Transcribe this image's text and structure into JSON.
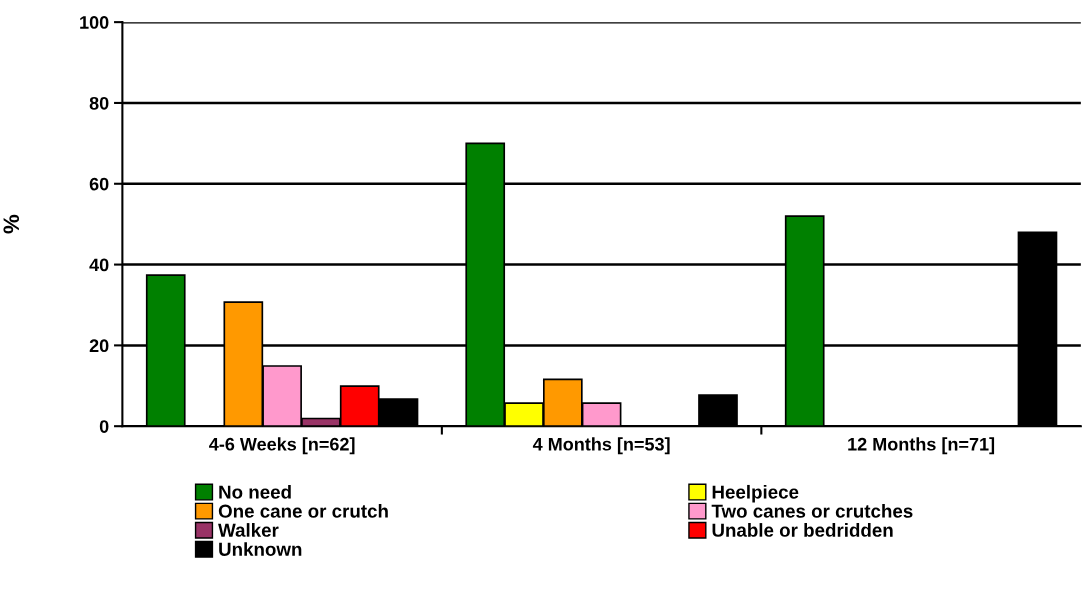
{
  "chart_data": {
    "type": "bar",
    "ylabel": "%",
    "categories": [
      "4-6 Weeks [n=62]",
      "4 Months [n=53]",
      "12 Months [n=71]"
    ],
    "series": [
      {
        "name": "No need",
        "color": "#008000",
        "values": [
          37.4,
          70,
          52
        ]
      },
      {
        "name": "Heelpiece",
        "color": "#ffff00",
        "values": [
          null,
          5.7,
          null
        ]
      },
      {
        "name": "One cane or crutch",
        "color": "#ff9900",
        "values": [
          30.7,
          11.6,
          null
        ]
      },
      {
        "name": "Two canes or crutches",
        "color": "#ff99cc",
        "values": [
          14.9,
          5.7,
          null
        ]
      },
      {
        "name": "Walker",
        "color": "#993366",
        "values": [
          1.9,
          null,
          null
        ]
      },
      {
        "name": "Unable or bedridden",
        "color": "#ff0000",
        "values": [
          9.9,
          null,
          null
        ]
      },
      {
        "name": "Unknown",
        "color": "#000000",
        "values": [
          6.7,
          7.7,
          48
        ]
      }
    ],
    "ylim": [
      0,
      100
    ],
    "yticks": [
      0,
      20,
      40,
      60,
      80,
      100
    ],
    "grid": "y",
    "legend": "bottom"
  }
}
